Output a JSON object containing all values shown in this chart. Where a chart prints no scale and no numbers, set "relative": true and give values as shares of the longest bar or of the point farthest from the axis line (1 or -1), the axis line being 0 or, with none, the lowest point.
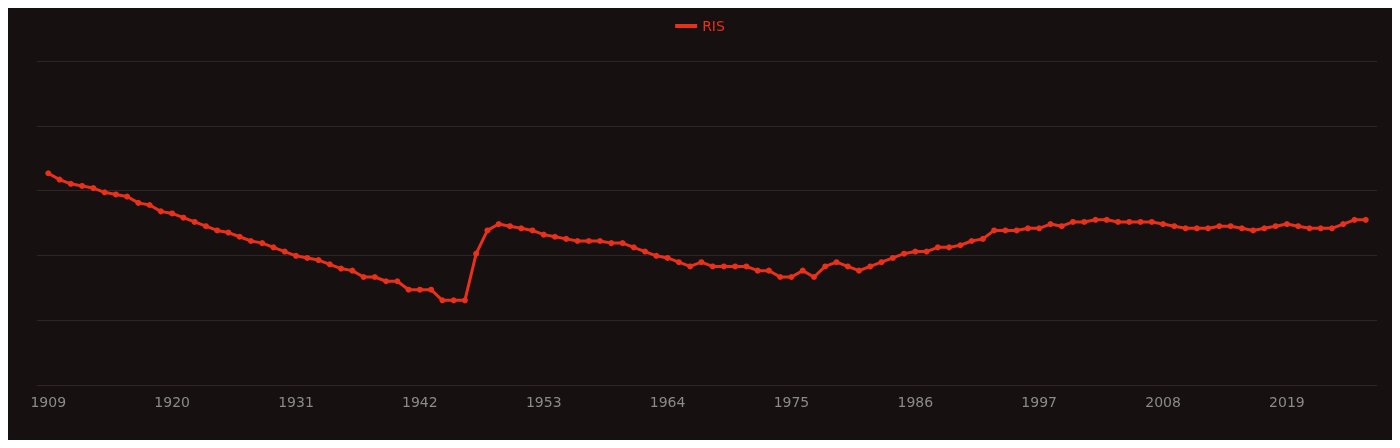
{
  "chart_data": {
    "type": "line",
    "relative": true,
    "x": [
      1909,
      1910,
      1911,
      1912,
      1913,
      1914,
      1915,
      1916,
      1917,
      1918,
      1919,
      1920,
      1921,
      1922,
      1923,
      1924,
      1925,
      1926,
      1927,
      1928,
      1929,
      1930,
      1931,
      1932,
      1933,
      1934,
      1935,
      1936,
      1937,
      1938,
      1939,
      1940,
      1941,
      1942,
      1943,
      1944,
      1945,
      1946,
      1947,
      1948,
      1949,
      1950,
      1951,
      1952,
      1953,
      1954,
      1955,
      1956,
      1957,
      1958,
      1959,
      1960,
      1961,
      1962,
      1963,
      1964,
      1965,
      1966,
      1967,
      1968,
      1969,
      1970,
      1971,
      1972,
      1973,
      1974,
      1975,
      1976,
      1977,
      1978,
      1979,
      1980,
      1981,
      1982,
      1983,
      1984,
      1985,
      1986,
      1987,
      1988,
      1989,
      1990,
      1991,
      1992,
      1993,
      1994,
      1995,
      1996,
      1997,
      1998,
      1999,
      2000,
      2001,
      2002,
      2003,
      2004,
      2005,
      2006,
      2007,
      2008,
      2009,
      2010,
      2011,
      2012,
      2013,
      2014,
      2015,
      2016,
      2017,
      2018,
      2019,
      2020,
      2021,
      2022,
      2023,
      2024,
      2025,
      2026
    ],
    "series": [
      {
        "name": "RIS",
        "color": "#e8301a",
        "values": [
          1.0,
          0.97,
          0.95,
          0.94,
          0.93,
          0.91,
          0.9,
          0.89,
          0.86,
          0.85,
          0.82,
          0.81,
          0.79,
          0.77,
          0.75,
          0.73,
          0.72,
          0.7,
          0.68,
          0.67,
          0.65,
          0.63,
          0.61,
          0.6,
          0.59,
          0.57,
          0.55,
          0.54,
          0.51,
          0.51,
          0.49,
          0.49,
          0.45,
          0.45,
          0.45,
          0.4,
          0.4,
          0.4,
          0.62,
          0.73,
          0.76,
          0.75,
          0.74,
          0.73,
          0.71,
          0.7,
          0.69,
          0.68,
          0.68,
          0.68,
          0.67,
          0.67,
          0.65,
          0.63,
          0.61,
          0.6,
          0.58,
          0.56,
          0.58,
          0.56,
          0.56,
          0.56,
          0.56,
          0.54,
          0.54,
          0.51,
          0.51,
          0.54,
          0.51,
          0.56,
          0.58,
          0.56,
          0.54,
          0.56,
          0.58,
          0.6,
          0.62,
          0.63,
          0.63,
          0.65,
          0.65,
          0.66,
          0.68,
          0.69,
          0.73,
          0.73,
          0.73,
          0.74,
          0.74,
          0.76,
          0.75,
          0.77,
          0.77,
          0.78,
          0.78,
          0.77,
          0.77,
          0.77,
          0.77,
          0.76,
          0.75,
          0.74,
          0.74,
          0.74,
          0.75,
          0.75,
          0.74,
          0.73,
          0.74,
          0.75,
          0.76,
          0.75,
          0.74,
          0.74,
          0.74,
          0.76,
          0.78,
          0.78
        ]
      }
    ],
    "xlim": [
      1908,
      2027
    ],
    "xticks": [
      1909,
      1920,
      1931,
      1942,
      1953,
      1964,
      1975,
      1986,
      1997,
      2008,
      2019
    ],
    "grid": "y",
    "legend": "top",
    "marker": "circle",
    "line_style": "solid"
  }
}
